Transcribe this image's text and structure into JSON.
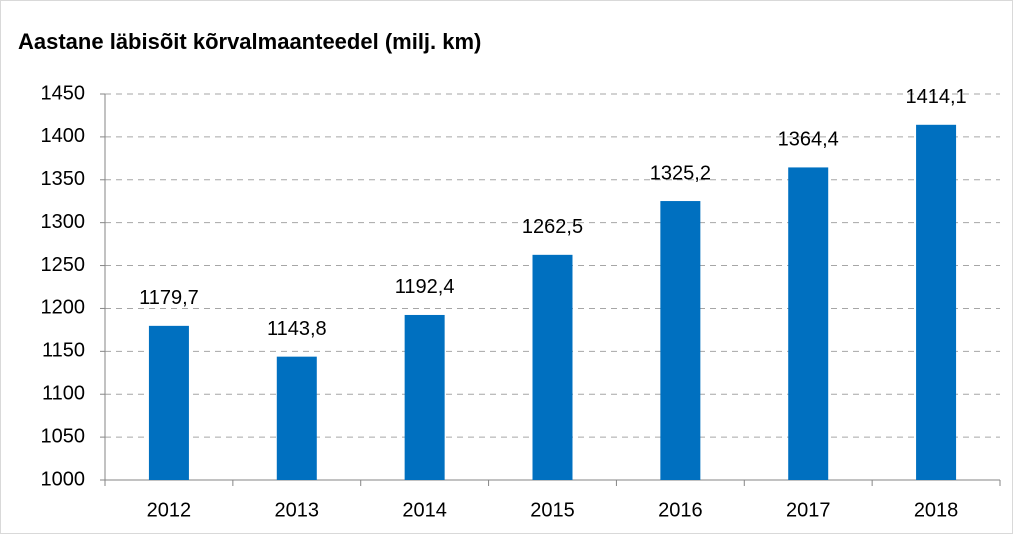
{
  "chart_data": {
    "type": "bar",
    "title": "Aastane läbisõit kõrvalmaanteedel (milj. km)",
    "categories": [
      "2012",
      "2013",
      "2014",
      "2015",
      "2016",
      "2017",
      "2018"
    ],
    "values": [
      1179.7,
      1143.8,
      1192.4,
      1262.5,
      1325.2,
      1364.4,
      1414.1
    ],
    "value_labels": [
      "1179,7",
      "1143,8",
      "1192,4",
      "1262,5",
      "1325,2",
      "1364,4",
      "1414,1"
    ],
    "color": "#0070c0",
    "ylim": [
      1000,
      1450
    ],
    "yticks": [
      1000,
      1050,
      1100,
      1150,
      1200,
      1250,
      1300,
      1350,
      1400,
      1450
    ],
    "grid": true
  }
}
